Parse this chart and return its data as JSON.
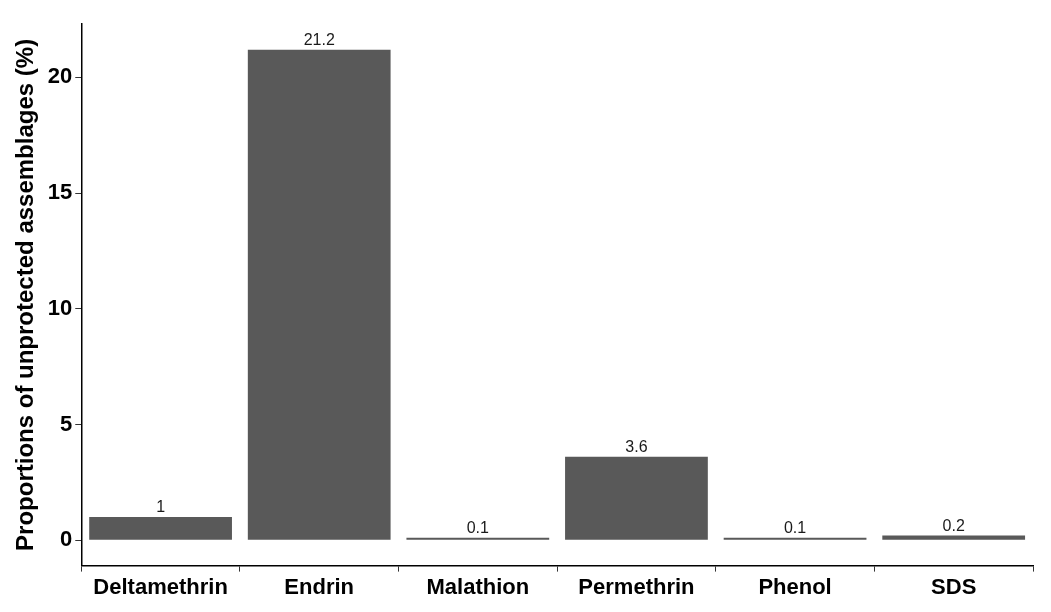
{
  "chart_data": {
    "type": "bar",
    "ylabel": "Proportions of unprotected assemblages (%)",
    "categories": [
      "Deltamethrin",
      "Endrin",
      "Malathion",
      "Permethrin",
      "Phenol",
      "SDS"
    ],
    "values": [
      1,
      21.2,
      0.1,
      3.6,
      0.1,
      0.2
    ],
    "color": "#595959",
    "ylim": [
      -1.1,
      22.3
    ],
    "yticks": [
      0,
      5,
      10,
      15,
      20
    ],
    "grid": false,
    "data_labels": true
  }
}
